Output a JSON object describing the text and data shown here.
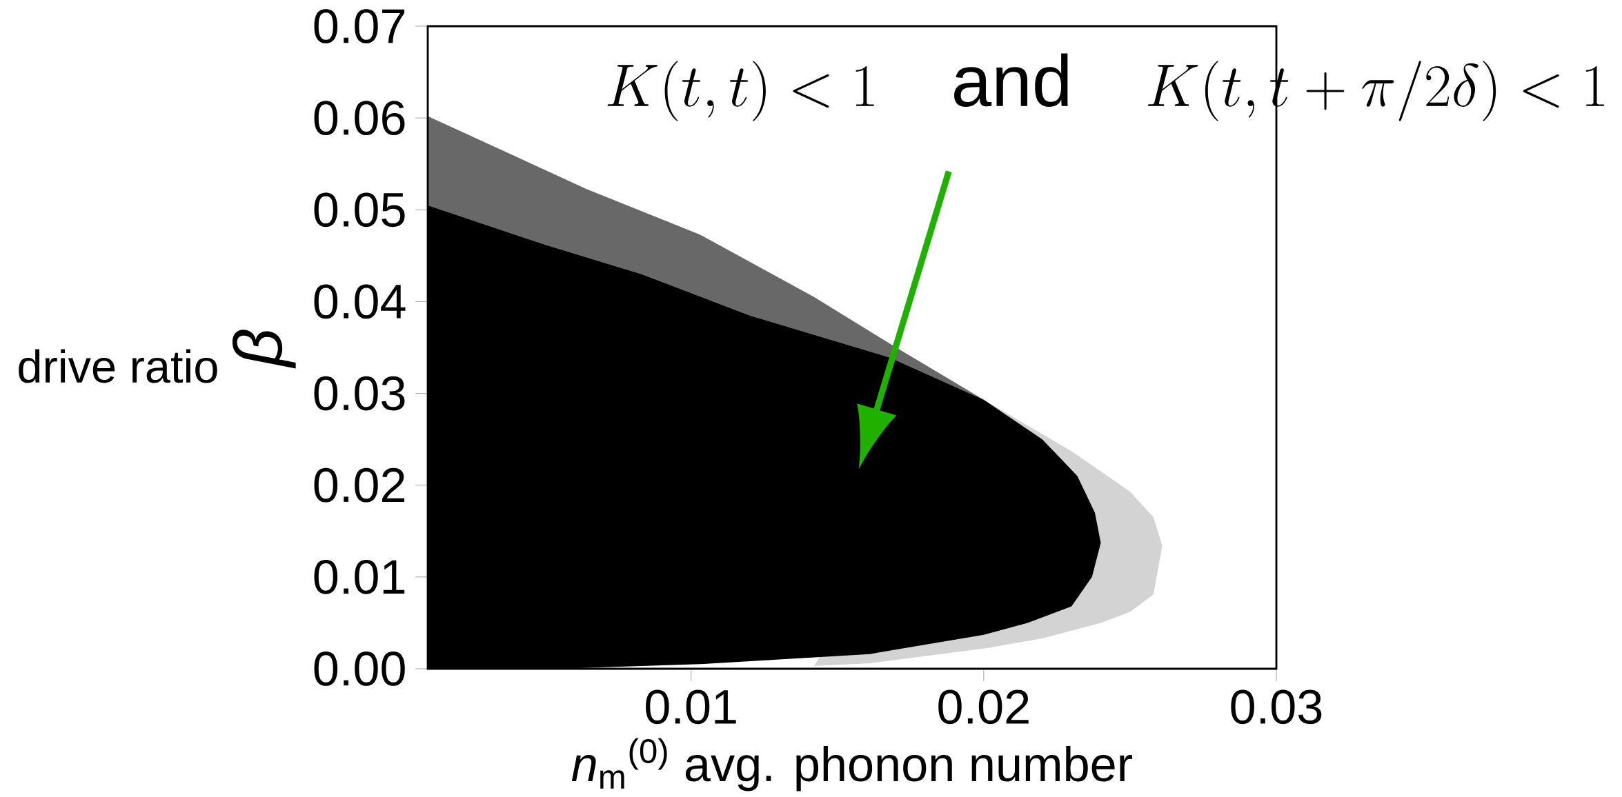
{
  "chart_data": {
    "type": "area",
    "xlabel": "*n*$_{m}$$^{(0)}$  avg. phonon number",
    "ylabel": "*β*",
    "xlim": [
      0.001,
      0.03
    ],
    "ylim": [
      0,
      0.07
    ],
    "xticks": [
      0.01,
      0.02,
      0.03
    ],
    "yticks": [
      {
        "value": 0,
        "label": "0.00"
      },
      0.01,
      0.02,
      0.03,
      0.04,
      0.05,
      0.06,
      0.07
    ],
    "series": [
      {
        "color": "#d3d3d3",
        "x": [
          0.02,
          0.023,
          0.025,
          0.0258,
          0.0261,
          0.0258,
          0.025,
          0.024,
          0.022,
          0.02,
          0.0161,
          0.0142
        ],
        "values": [
          0.0293,
          0.0237,
          0.0193,
          0.0165,
          0.0134,
          0.0081,
          0.0062,
          0.005,
          0.0033,
          0.0022,
          0.0006,
          0.0003
        ]
      },
      {
        "color": "#686868",
        "x": [
          0.001,
          0.0064,
          0.0103,
          0.0142,
          0.0169,
          0.02,
          0.0168,
          0.012,
          0.0083,
          0.005,
          0.001
        ],
        "values": [
          0.0602,
          0.0523,
          0.0473,
          0.0405,
          0.0352,
          0.0293,
          0.0339,
          0.0385,
          0.043,
          0.0462,
          0.0505
        ]
      },
      {
        "color": "#000000",
        "x": [
          0.001,
          0.005,
          0.0083,
          0.012,
          0.0168,
          0.02,
          0.022,
          0.0232,
          0.0238,
          0.024,
          0.0237,
          0.023,
          0.0215,
          0.02,
          0.0161,
          0.0103,
          0.0054,
          0.001
        ],
        "values": [
          0.0505,
          0.0462,
          0.043,
          0.0385,
          0.0339,
          0.0293,
          0.025,
          0.021,
          0.017,
          0.0137,
          0.01,
          0.0068,
          0.005,
          0.0037,
          0.0016,
          0.0005,
          0.0,
          0.0
        ]
      }
    ],
    "annotations": [
      "K(t,t) < 1 \\quad \\mathrm{and} \\quad K(t,t+\\pi/2\\delta) < 1",
      "drive ratio"
    ]
  }
}
